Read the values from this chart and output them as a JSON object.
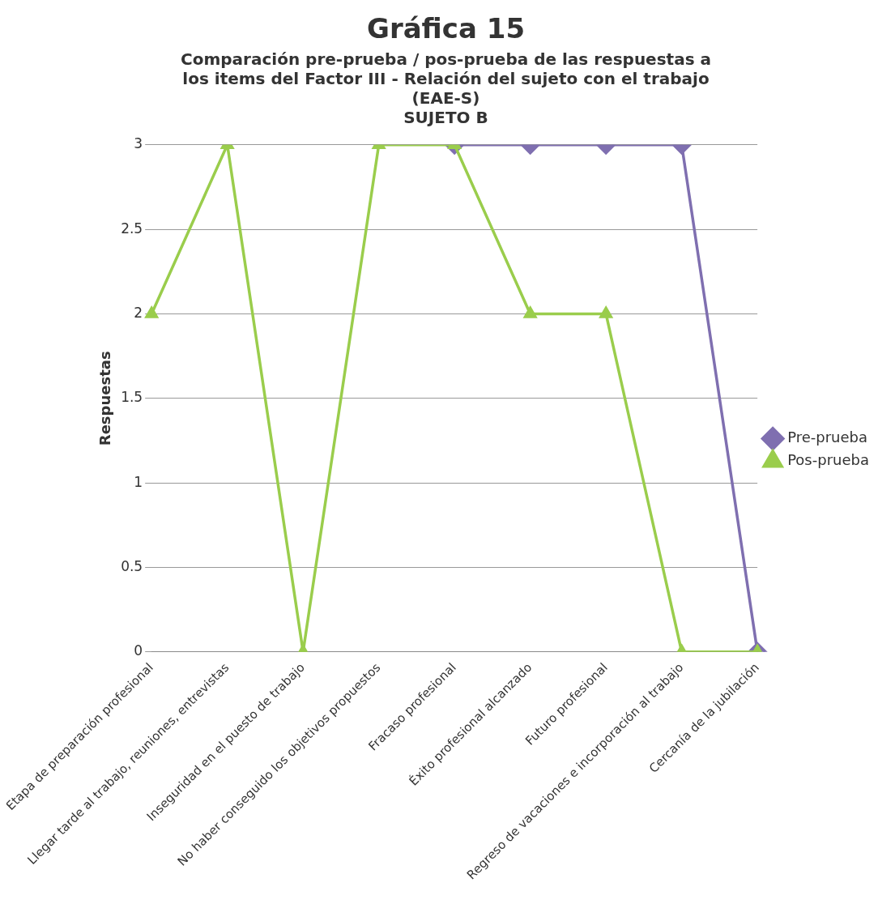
{
  "chart_data": {
    "type": "line",
    "title": "Gráfica 15",
    "subtitle": "Comparación pre-prueba / pos-prueba de las respuestas a\nlos items del Factor III - Relación del sujeto con el trabajo\n(EAE-S)\nSUJETO B",
    "ylabel": "Respuestas",
    "categories": [
      "Etapa de preparación profesional",
      "Llegar tarde al trabajo, reuniones, entrevistas",
      "Inseguridad en el puesto de trabajo",
      "No haber conseguido los objetivos propuestos",
      "Fracaso profesional",
      "Éxito profesional alcanzado",
      "Futuro profesional",
      "Regreso de vacaciones e incorporación al trabajo",
      "Cercanía de la jubilación"
    ],
    "series": [
      {
        "name": "Pre-prueba",
        "color": "#7f6fb0",
        "marker": "diamond",
        "values": [
          null,
          null,
          null,
          null,
          3,
          3,
          3,
          3,
          0
        ]
      },
      {
        "name": "Pos-prueba",
        "color": "#9acd4c",
        "marker": "triangle",
        "values": [
          2,
          3,
          0,
          3,
          3,
          2,
          2,
          0,
          0
        ]
      }
    ],
    "ylim": [
      0,
      3
    ],
    "yticks": [
      0,
      0.5,
      1,
      1.5,
      2,
      2.5,
      3
    ],
    "grid": "y",
    "legend": "right"
  }
}
